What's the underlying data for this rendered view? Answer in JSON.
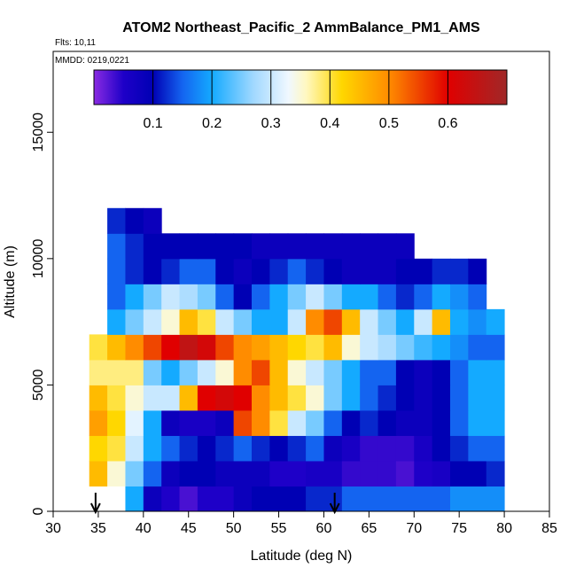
{
  "chart_data": {
    "type": "heatmap",
    "title": "ATOM2 Northeast_Pacific_2 AmmBalance_PM1_AMS",
    "subtitle": "Flts: 10,11",
    "annotation": "MMDD: 0219,0221",
    "xlabel": "Latitude (deg N)",
    "ylabel": "Altitude (m)",
    "xlim": [
      30,
      85
    ],
    "xticks": [
      30,
      35,
      40,
      45,
      50,
      55,
      60,
      65,
      70,
      75,
      80,
      85
    ],
    "ylim": [
      0,
      18200
    ],
    "yticks": [
      0,
      5000,
      10000,
      15000
    ],
    "x": [
      35,
      37,
      39,
      41,
      43,
      45,
      47,
      49,
      51,
      53,
      55,
      57,
      59,
      61,
      63,
      65,
      67,
      69,
      71,
      73,
      75,
      77,
      79
    ],
    "y": [
      500,
      1500,
      2500,
      3500,
      4500,
      5500,
      6500,
      7500,
      8500,
      9500,
      10500,
      11500
    ],
    "values": [
      [
        null,
        null,
        0.2,
        0.08,
        0.05,
        0.03,
        0.05,
        0.05,
        0.08,
        0.1,
        0.1,
        0.1,
        0.12,
        0.12,
        0.15,
        0.15,
        0.15,
        0.15,
        0.15,
        0.15,
        0.18,
        0.18,
        0.18
      ],
      [
        0.45,
        0.35,
        0.25,
        0.15,
        0.08,
        0.1,
        0.1,
        0.08,
        0.08,
        0.08,
        0.05,
        0.05,
        0.06,
        0.06,
        0.04,
        0.04,
        0.04,
        0.03,
        0.05,
        0.06,
        0.1,
        0.1,
        0.12
      ],
      [
        0.42,
        0.4,
        0.3,
        0.2,
        0.15,
        0.12,
        0.1,
        0.12,
        0.15,
        0.12,
        0.1,
        0.12,
        0.15,
        0.08,
        0.06,
        0.04,
        0.04,
        0.04,
        0.06,
        0.1,
        0.12,
        0.15,
        0.15
      ],
      [
        0.48,
        0.42,
        0.32,
        0.2,
        0.08,
        0.06,
        0.06,
        0.08,
        0.55,
        0.5,
        0.4,
        0.3,
        0.25,
        0.15,
        0.1,
        0.12,
        0.1,
        0.08,
        0.08,
        0.1,
        0.15,
        0.2,
        0.2
      ],
      [
        0.45,
        0.4,
        0.35,
        0.3,
        0.3,
        0.45,
        0.6,
        0.62,
        0.6,
        0.5,
        0.45,
        0.4,
        0.35,
        0.25,
        0.2,
        0.15,
        0.12,
        0.1,
        0.08,
        0.1,
        0.15,
        0.2,
        0.2
      ],
      [
        0.38,
        0.38,
        0.38,
        0.25,
        0.2,
        0.25,
        0.3,
        0.35,
        0.5,
        0.55,
        0.45,
        0.35,
        0.3,
        0.25,
        0.2,
        0.15,
        0.15,
        0.1,
        0.08,
        0.1,
        0.15,
        0.2,
        0.2
      ],
      [
        0.4,
        0.45,
        0.5,
        0.55,
        0.6,
        0.65,
        0.62,
        0.55,
        0.5,
        0.48,
        0.45,
        0.42,
        0.4,
        0.45,
        0.35,
        0.3,
        0.28,
        0.25,
        0.22,
        0.2,
        0.18,
        0.15,
        0.15
      ],
      [
        null,
        0.2,
        0.25,
        0.3,
        0.35,
        0.45,
        0.4,
        0.3,
        0.25,
        0.2,
        0.2,
        0.3,
        0.5,
        0.55,
        0.45,
        0.3,
        0.25,
        0.2,
        0.3,
        0.45,
        0.2,
        0.18,
        0.2
      ],
      [
        null,
        0.15,
        0.2,
        0.25,
        0.3,
        0.28,
        0.25,
        0.15,
        0.1,
        0.15,
        0.2,
        0.25,
        0.3,
        0.25,
        0.2,
        0.2,
        0.15,
        0.12,
        0.15,
        0.2,
        0.18,
        0.15,
        null
      ],
      [
        null,
        0.15,
        0.12,
        0.1,
        0.12,
        0.15,
        0.15,
        0.1,
        0.08,
        0.1,
        0.12,
        0.15,
        0.12,
        0.1,
        0.08,
        0.08,
        0.08,
        0.1,
        0.1,
        0.12,
        0.12,
        0.1,
        null
      ],
      [
        null,
        0.15,
        0.12,
        0.1,
        0.1,
        0.1,
        0.1,
        0.1,
        0.1,
        0.08,
        0.08,
        0.08,
        0.08,
        0.08,
        0.08,
        0.08,
        0.08,
        0.08,
        null,
        null,
        null,
        null,
        null
      ],
      [
        null,
        0.12,
        0.1,
        0.08,
        null,
        null,
        null,
        null,
        null,
        null,
        null,
        null,
        null,
        null,
        null,
        null,
        null,
        null,
        null,
        null,
        null,
        null,
        null
      ]
    ],
    "arrows_x": [
      34.7,
      61.2
    ],
    "colorbar_lim": [
      0,
      0.7
    ],
    "colorbar_ticks": [
      0.1,
      0.2,
      0.3,
      0.4,
      0.5,
      0.6
    ],
    "colorscale": [
      [
        0,
        "#8a2be2"
      ],
      [
        0.05,
        "#1e00c8"
      ],
      [
        0.1,
        "#0000b4"
      ],
      [
        0.15,
        "#1464f0"
      ],
      [
        0.2,
        "#14aaff"
      ],
      [
        0.27,
        "#a0d8ff"
      ],
      [
        0.33,
        "#f0f8ff"
      ],
      [
        0.36,
        "#fff8c0"
      ],
      [
        0.42,
        "#ffd700"
      ],
      [
        0.5,
        "#ff8c00"
      ],
      [
        0.6,
        "#e00000"
      ],
      [
        0.7,
        "#a02828"
      ]
    ]
  }
}
